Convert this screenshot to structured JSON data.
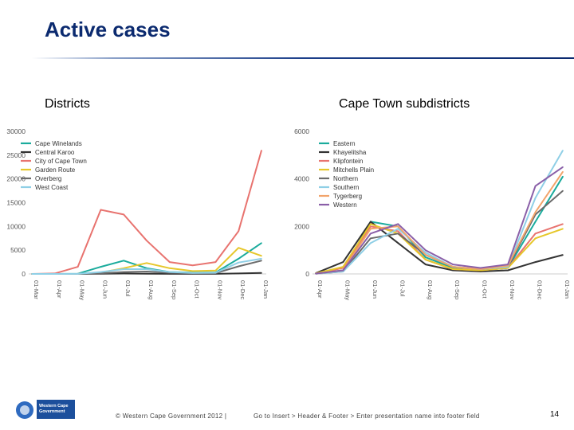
{
  "slide": {
    "title": "Active cases",
    "left_heading": "Districts",
    "right_heading": "Cape Town subdistricts",
    "footer_left": "© Western Cape Government 2012  |",
    "footer_right": "Go to Insert > Header & Footer > Enter presentation name into footer field",
    "page_number": "14",
    "logo_text": [
      "Western Cape",
      "Government"
    ],
    "logo_colors": {
      "box": "#1c4f9c",
      "emblem": "#2f6bc0"
    }
  },
  "chart_data": [
    {
      "type": "line",
      "x": [
        "01-Mar",
        "01-Apr",
        "01-May",
        "01-Jun",
        "01-Jul",
        "01-Aug",
        "01-Sep",
        "01-Oct",
        "01-Nov",
        "01-Dec",
        "01-Jan"
      ],
      "ylim": [
        0,
        30000
      ],
      "yticks": [
        "0",
        "5000",
        "10000",
        "15000",
        "20000",
        "25000",
        "30000"
      ],
      "legend_position": "top-left",
      "grid": false,
      "series": [
        {
          "name": "Cape Winelands",
          "color": "#1aab9c",
          "values": [
            0,
            0,
            50,
            1500,
            2800,
            1200,
            400,
            300,
            300,
            3200,
            6500
          ]
        },
        {
          "name": "Central Karoo",
          "color": "#333333",
          "values": [
            0,
            0,
            0,
            30,
            80,
            50,
            20,
            20,
            20,
            100,
            200
          ]
        },
        {
          "name": "City of Cape Town",
          "color": "#e8736f",
          "values": [
            0,
            100,
            1500,
            13500,
            12500,
            7000,
            2500,
            1800,
            2500,
            9000,
            26000
          ]
        },
        {
          "name": "Garden Route",
          "color": "#e6c72a",
          "values": [
            0,
            0,
            10,
            300,
            1200,
            2300,
            1200,
            600,
            700,
            5500,
            3800
          ]
        },
        {
          "name": "Overberg",
          "color": "#6b6b6b",
          "values": [
            0,
            0,
            10,
            150,
            400,
            500,
            250,
            150,
            150,
            1600,
            2800
          ]
        },
        {
          "name": "West Coast",
          "color": "#8fcfe6",
          "values": [
            0,
            0,
            10,
            400,
            1000,
            1000,
            400,
            200,
            250,
            2400,
            3200
          ]
        }
      ]
    },
    {
      "type": "line",
      "x": [
        "01-Apr",
        "01-May",
        "01-Jun",
        "01-Jul",
        "01-Aug",
        "01-Sep",
        "01-Oct",
        "01-Nov",
        "01-Dec",
        "01-Jan"
      ],
      "ylim": [
        0,
        6000
      ],
      "yticks": [
        "0",
        "2000",
        "4000",
        "6000"
      ],
      "legend_position": "top-left",
      "grid": false,
      "series": [
        {
          "name": "Eastern",
          "color": "#1aab9c",
          "values": [
            20,
            150,
            2200,
            2000,
            700,
            250,
            150,
            250,
            2200,
            4100
          ]
        },
        {
          "name": "Khayelitsha",
          "color": "#333333",
          "values": [
            30,
            500,
            2200,
            1300,
            400,
            150,
            100,
            150,
            500,
            800
          ]
        },
        {
          "name": "Klipfontein",
          "color": "#e8736f",
          "values": [
            20,
            250,
            2000,
            1800,
            600,
            200,
            150,
            250,
            1700,
            2100
          ]
        },
        {
          "name": "Mitchells Plain",
          "color": "#e6c72a",
          "values": [
            20,
            300,
            2100,
            1700,
            600,
            200,
            150,
            250,
            1500,
            1900
          ]
        },
        {
          "name": "Northern",
          "color": "#6b6b6b",
          "values": [
            10,
            100,
            1500,
            1700,
            800,
            300,
            200,
            300,
            2500,
            3500
          ]
        },
        {
          "name": "Southern",
          "color": "#8fcfe6",
          "values": [
            10,
            100,
            1300,
            1900,
            900,
            300,
            200,
            300,
            3200,
            5200
          ]
        },
        {
          "name": "Tygerberg",
          "color": "#f2a46b",
          "values": [
            15,
            150,
            1900,
            2000,
            800,
            300,
            200,
            350,
            2600,
            4300
          ]
        },
        {
          "name": "Western",
          "color": "#8a5fa8",
          "values": [
            15,
            150,
            1700,
            2100,
            1000,
            400,
            250,
            400,
            3700,
            4500
          ]
        }
      ]
    }
  ]
}
